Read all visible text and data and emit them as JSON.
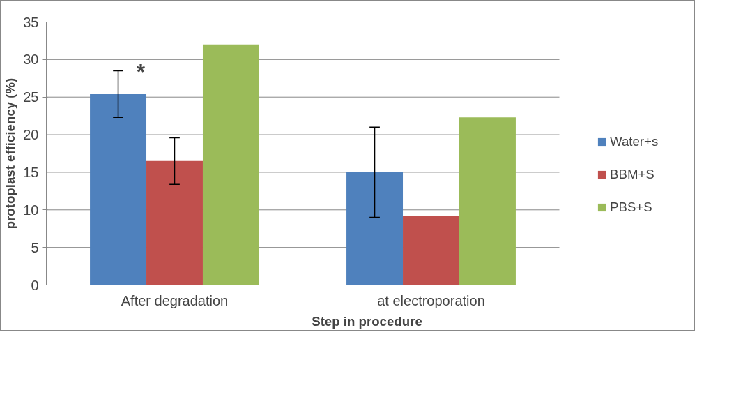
{
  "chart_data": {
    "type": "bar",
    "xlabel": "Step in procedure",
    "ylabel": "protoplast efficiency (%)",
    "categories": [
      "After degradation",
      "at electroporation"
    ],
    "series": [
      {
        "name": "Water+s",
        "color": "#4f81bd",
        "values": [
          25.4,
          15.0
        ],
        "errors": [
          3.1,
          6.0
        ]
      },
      {
        "name": "BBM+S",
        "color": "#c0504d",
        "values": [
          16.5,
          9.2
        ],
        "errors": [
          3.1,
          null
        ]
      },
      {
        "name": "PBS+S",
        "color": "#9bbb59",
        "values": [
          32.0,
          22.3
        ],
        "errors": [
          null,
          null
        ]
      }
    ],
    "ylim": [
      0,
      35
    ],
    "yticks": [
      0,
      5,
      10,
      15,
      20,
      25,
      30,
      35
    ],
    "grid": "y",
    "legend": "right",
    "annotations": [
      "*"
    ]
  }
}
